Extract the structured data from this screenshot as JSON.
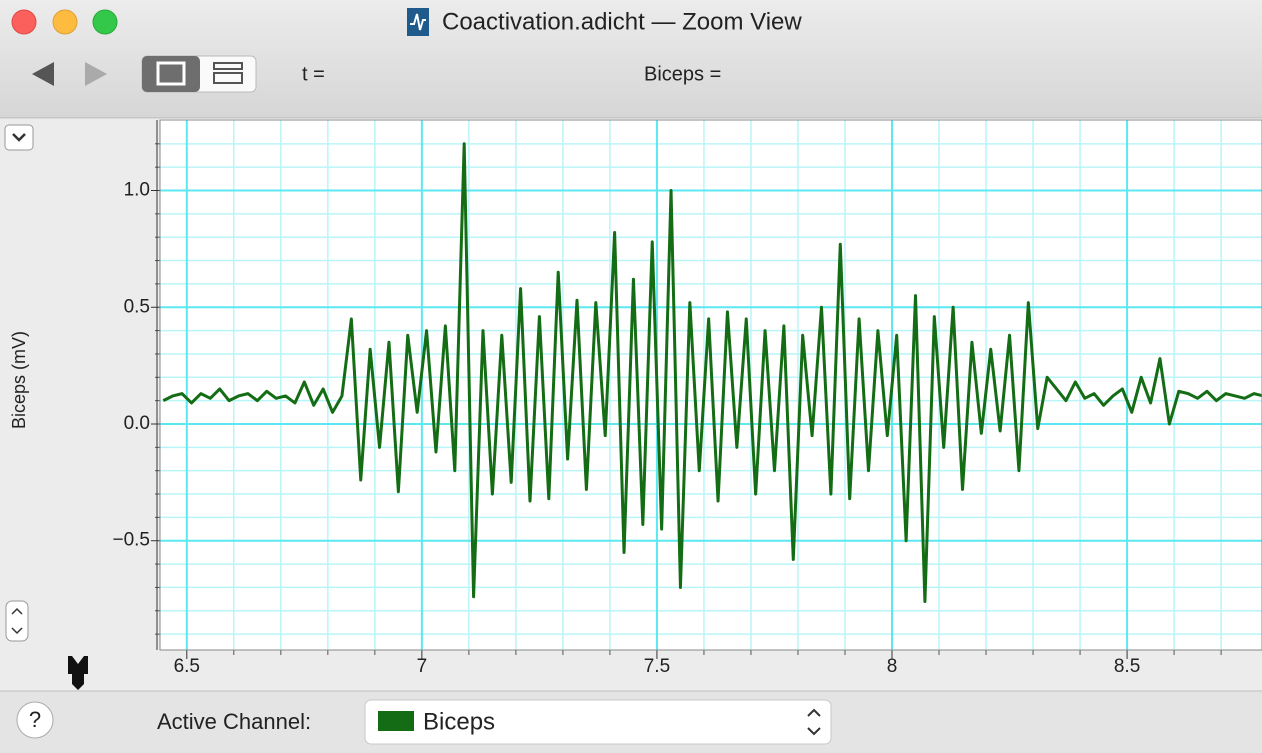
{
  "window": {
    "title": "Coactivation.adicht — Zoom View",
    "time_readout": "t =",
    "channel_readout": "Biceps =",
    "active_channel_label": "Active Channel:",
    "active_channel": "Biceps",
    "help": "?"
  },
  "chart_data": {
    "type": "line",
    "y_label": "Biceps (mV)",
    "color": "#146c14",
    "grid": true,
    "xlim": [
      6.443,
      8.787
    ],
    "ylim": [
      -0.968,
      1.302
    ],
    "xticks": [
      6.5,
      7,
      7.5,
      8,
      8.5
    ],
    "yticks": [
      {
        "value": -0.5,
        "label": "−0.5"
      },
      {
        "value": 0,
        "label": "0.0"
      },
      0.5,
      {
        "value": 1,
        "label": "1.0"
      }
    ],
    "xminorticks": [
      6.6,
      6.7,
      6.8,
      6.9,
      7.1,
      7.2,
      7.3,
      7.4,
      7.6,
      7.7,
      7.8,
      7.9,
      8.1,
      8.2,
      8.3,
      8.4,
      8.6,
      8.7
    ],
    "yminorticks": [
      -0.9,
      -0.8,
      -0.7,
      -0.6,
      -0.4,
      -0.3,
      -0.2,
      -0.1,
      0.1,
      0.2,
      0.3,
      0.4,
      0.6,
      0.7,
      0.8,
      0.9,
      1.1,
      1.2
    ],
    "x": [
      6.45,
      6.47,
      6.49,
      6.51,
      6.53,
      6.55,
      6.57,
      6.59,
      6.61,
      6.63,
      6.65,
      6.67,
      6.69,
      6.71,
      6.73,
      6.75,
      6.77,
      6.79,
      6.81,
      6.83,
      6.85,
      6.87,
      6.89,
      6.91,
      6.93,
      6.95,
      6.97,
      6.99,
      7.01,
      7.03,
      7.05,
      7.07,
      7.09,
      7.11,
      7.13,
      7.15,
      7.17,
      7.19,
      7.21,
      7.23,
      7.25,
      7.27,
      7.29,
      7.31,
      7.33,
      7.35,
      7.37,
      7.39,
      7.41,
      7.43,
      7.45,
      7.47,
      7.49,
      7.51,
      7.53,
      7.55,
      7.57,
      7.59,
      7.61,
      7.63,
      7.65,
      7.67,
      7.69,
      7.71,
      7.73,
      7.75,
      7.77,
      7.79,
      7.81,
      7.83,
      7.85,
      7.87,
      7.89,
      7.91,
      7.93,
      7.95,
      7.97,
      7.99,
      8.01,
      8.03,
      8.05,
      8.07,
      8.09,
      8.11,
      8.13,
      8.15,
      8.17,
      8.19,
      8.21,
      8.23,
      8.25,
      8.27,
      8.29,
      8.31,
      8.33,
      8.35,
      8.37,
      8.39,
      8.41,
      8.43,
      8.45,
      8.47,
      8.49,
      8.51,
      8.53,
      8.55,
      8.57,
      8.59,
      8.61,
      8.63,
      8.65,
      8.67,
      8.69,
      8.71,
      8.73,
      8.75,
      8.77,
      8.79
    ],
    "values": [
      0.1,
      0.12,
      0.13,
      0.09,
      0.13,
      0.11,
      0.15,
      0.1,
      0.12,
      0.13,
      0.1,
      0.14,
      0.11,
      0.12,
      0.09,
      0.18,
      0.08,
      0.15,
      0.05,
      0.12,
      0.45,
      -0.24,
      0.32,
      -0.1,
      0.35,
      -0.29,
      0.38,
      0.05,
      0.4,
      -0.12,
      0.42,
      -0.2,
      1.2,
      -0.74,
      0.4,
      -0.3,
      0.38,
      -0.25,
      0.58,
      -0.33,
      0.46,
      -0.32,
      0.65,
      -0.15,
      0.53,
      -0.28,
      0.52,
      -0.05,
      0.82,
      -0.55,
      0.62,
      -0.43,
      0.78,
      -0.45,
      1.0,
      -0.7,
      0.52,
      -0.2,
      0.45,
      -0.33,
      0.48,
      -0.1,
      0.45,
      -0.3,
      0.4,
      -0.2,
      0.42,
      -0.58,
      0.38,
      -0.05,
      0.5,
      -0.3,
      0.77,
      -0.32,
      0.45,
      -0.2,
      0.4,
      -0.05,
      0.38,
      -0.5,
      0.55,
      -0.76,
      0.46,
      -0.1,
      0.5,
      -0.28,
      0.35,
      -0.04,
      0.32,
      -0.03,
      0.38,
      -0.2,
      0.52,
      -0.02,
      0.2,
      0.15,
      0.1,
      0.18,
      0.11,
      0.13,
      0.08,
      0.12,
      0.15,
      0.05,
      0.2,
      0.09,
      0.28,
      0.0,
      0.14,
      0.13,
      0.11,
      0.14,
      0.1,
      0.13,
      0.12,
      0.11,
      0.13,
      0.12
    ]
  }
}
